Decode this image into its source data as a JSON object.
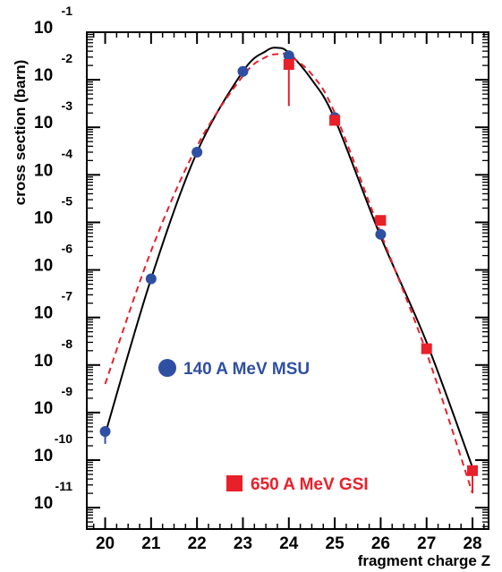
{
  "chart_data": {
    "type": "scatter",
    "xlabel": "fragment charge Z",
    "ylabel": "cross section (barn)",
    "xlim": [
      19.6,
      28.35
    ],
    "ylim_log10": [
      -11.45,
      -1
    ],
    "y_scale": "log",
    "x_ticks": [
      {
        "value": 20,
        "label": "20"
      },
      {
        "value": 21,
        "label": "21"
      },
      {
        "value": 22,
        "label": "22"
      },
      {
        "value": 23,
        "label": "23"
      },
      {
        "value": 24,
        "label": "24"
      },
      {
        "value": 25,
        "label": "25"
      },
      {
        "value": 26,
        "label": "26"
      },
      {
        "value": 27,
        "label": "27"
      },
      {
        "value": 28,
        "label": "28"
      }
    ],
    "y_ticks": [
      {
        "exp": -1,
        "base": "10",
        "sup": "-1"
      },
      {
        "exp": -2,
        "base": "10",
        "sup": "-2"
      },
      {
        "exp": -3,
        "base": "10",
        "sup": "-3"
      },
      {
        "exp": -4,
        "base": "10",
        "sup": "-4"
      },
      {
        "exp": -5,
        "base": "10",
        "sup": "-5"
      },
      {
        "exp": -6,
        "base": "10",
        "sup": "-6"
      },
      {
        "exp": -7,
        "base": "10",
        "sup": "-7"
      },
      {
        "exp": -8,
        "base": "10",
        "sup": "-8"
      },
      {
        "exp": -9,
        "base": "10",
        "sup": "-9"
      },
      {
        "exp": -10,
        "base": "10",
        "sup": "-10"
      },
      {
        "exp": -11,
        "base": "10",
        "sup": "-11"
      }
    ],
    "series": [
      {
        "name": "140 A MeV MSU",
        "marker": "circle",
        "color": "#2f4fa3",
        "points": [
          {
            "x": 20,
            "y": 4e-10
          },
          {
            "x": 21,
            "y": 6.5e-07
          },
          {
            "x": 22,
            "y": 0.0003
          },
          {
            "x": 23,
            "y": 0.015
          },
          {
            "x": 24,
            "y": 0.032
          },
          {
            "x": 25,
            "y": 0.0016
          },
          {
            "x": 26,
            "y": 5.6e-06
          }
        ],
        "error_bars": [
          {
            "x": 20,
            "y_low": 2.2e-10,
            "y_high": 4e-10
          }
        ]
      },
      {
        "name": "650 A MeV GSI",
        "marker": "square",
        "color": "#e8202a",
        "points": [
          {
            "x": 24,
            "y": 0.021
          },
          {
            "x": 25,
            "y": 0.0014
          },
          {
            "x": 26,
            "y": 1.1e-05
          },
          {
            "x": 27,
            "y": 2.2e-08
          },
          {
            "x": 28,
            "y": 6e-11
          }
        ],
        "error_bars": [
          {
            "x": 24,
            "y_low": 0.0028,
            "y_high": 0.021
          },
          {
            "x": 28,
            "y_low": 2e-11,
            "y_high": 6e-11
          }
        ]
      }
    ],
    "curves": [
      {
        "style": "solid",
        "color": "#000000",
        "points": [
          {
            "x": 20.0,
            "y": 3.5e-10
          },
          {
            "x": 21.0,
            "y": 6.5e-07
          },
          {
            "x": 22.0,
            "y": 0.0003
          },
          {
            "x": 23.0,
            "y": 0.015
          },
          {
            "x": 23.5,
            "y": 0.04
          },
          {
            "x": 23.75,
            "y": 0.047
          },
          {
            "x": 24.0,
            "y": 0.037
          },
          {
            "x": 24.5,
            "y": 0.01
          },
          {
            "x": 25.0,
            "y": 0.0015
          },
          {
            "x": 26.0,
            "y": 5e-06
          },
          {
            "x": 27.0,
            "y": 3e-08
          },
          {
            "x": 28.0,
            "y": 7e-11
          }
        ]
      },
      {
        "style": "dashed",
        "color": "#e8202a",
        "points": [
          {
            "x": 20.0,
            "y": 4e-09
          },
          {
            "x": 21.0,
            "y": 2.5e-06
          },
          {
            "x": 22.0,
            "y": 0.0004
          },
          {
            "x": 23.0,
            "y": 0.012
          },
          {
            "x": 23.5,
            "y": 0.03
          },
          {
            "x": 23.85,
            "y": 0.035
          },
          {
            "x": 24.0,
            "y": 0.033
          },
          {
            "x": 24.5,
            "y": 0.013
          },
          {
            "x": 25.0,
            "y": 0.002
          },
          {
            "x": 26.0,
            "y": 6e-06
          },
          {
            "x": 27.0,
            "y": 1.8e-08
          },
          {
            "x": 28.0,
            "y": 2e-11
          }
        ]
      }
    ],
    "legend": [
      {
        "label": "140 A MeV MSU",
        "marker": "circle",
        "color": "#2f4fa3",
        "position": "left-middle"
      },
      {
        "label": "650 A MeV GSI",
        "marker": "square",
        "color": "#e8202a",
        "position": "bottom-center"
      }
    ],
    "grid": false
  }
}
